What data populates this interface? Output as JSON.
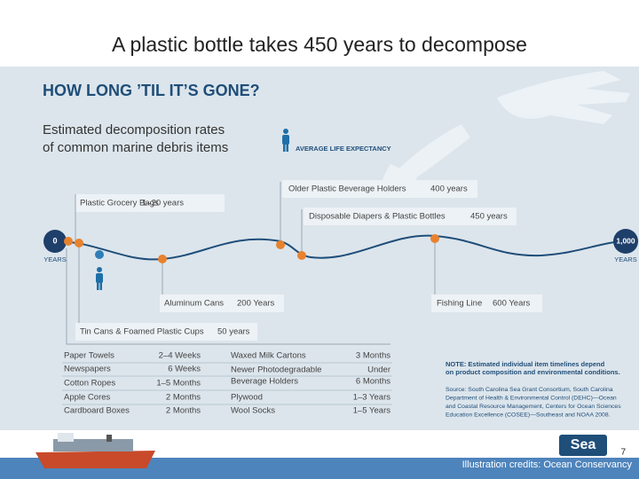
{
  "header": {
    "title": "A plastic bottle takes 450 years to decompose"
  },
  "infographic": {
    "heading": "HOW LONG ’TIL IT’S GONE?",
    "subtitle": [
      "Estimated decomposition rates",
      "of common marine debris items"
    ],
    "legend": "AVERAGE LIFE EXPECTANCY",
    "timeline": {
      "start": "0",
      "end": "1,000",
      "unit": "YEARS"
    },
    "items": [
      {
        "name": "Plastic Grocery Bags",
        "time": "1–20 years"
      },
      {
        "name": "Older Plastic Beverage Holders",
        "time": "400 years"
      },
      {
        "name": "Disposable Diapers & Plastic Bottles",
        "time": "450 years"
      },
      {
        "name": "Aluminum Cans",
        "time": "200 Years"
      },
      {
        "name": "Fishing Line",
        "time": "600 Years"
      },
      {
        "name": "Tin Cans & Foamed Plastic Cups",
        "time": "50 years"
      }
    ],
    "table": {
      "left": [
        [
          "Paper Towels",
          "2–4 Weeks"
        ],
        [
          "Newspapers",
          "6 Weeks"
        ],
        [
          "Cotton Ropes",
          "1–5 Months"
        ],
        [
          "Apple Cores",
          "2 Months"
        ],
        [
          "Cardboard Boxes",
          "2 Months"
        ]
      ],
      "right": [
        [
          "Waxed Milk Cartons",
          "3 Months"
        ],
        [
          "Newer Photodegradable",
          "Under"
        ],
        [
          "Beverage Holders",
          "6 Months"
        ],
        [
          "Plywood",
          "1–3 Years"
        ],
        [
          "Wool Socks",
          "1–5 Years"
        ]
      ]
    },
    "note": [
      "NOTE: Estimated individual item timelines depend",
      "on product composition and environmental conditions."
    ],
    "source": [
      "Source: South Carolina Sea Grant Consortium, South Carolina",
      "Department of Health & Environmental Control (DEHC)—Ocean",
      "and Coastal Resource Management, Centers for Ocean Sciences",
      "Education Excellence (COSEE)—Southeast and NOAA 2008."
    ]
  },
  "footer": {
    "page": "7",
    "credit": "Illustration credits: Ocean Conservancy"
  }
}
